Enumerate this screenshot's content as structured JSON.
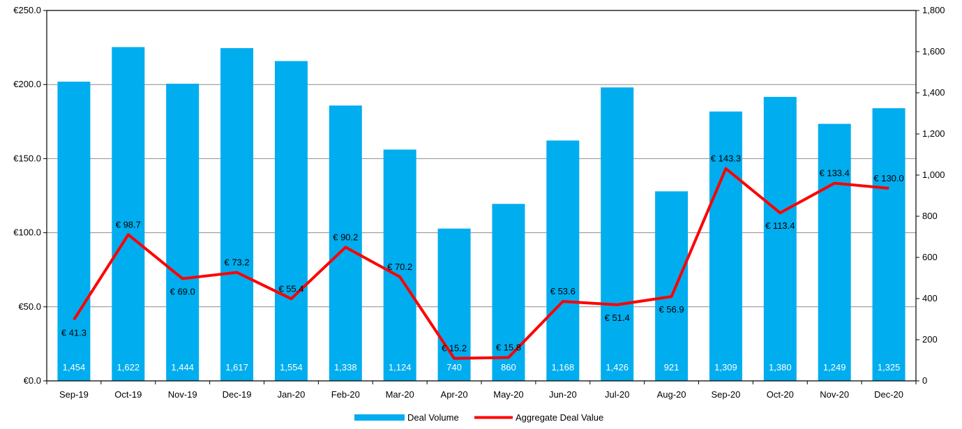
{
  "chart_data": {
    "type": "bar",
    "categories": [
      "Sep-19",
      "Oct-19",
      "Nov-19",
      "Dec-19",
      "Jan-20",
      "Feb-20",
      "Mar-20",
      "Apr-20",
      "May-20",
      "Jun-20",
      "Jul-20",
      "Aug-20",
      "Sep-20",
      "Oct-20",
      "Nov-20",
      "Dec-20"
    ],
    "series": [
      {
        "name": "Deal Volume",
        "type": "bar",
        "axis": "right",
        "color": "#00adee",
        "values": [
          1454,
          1622,
          1444,
          1617,
          1554,
          1338,
          1124,
          740,
          860,
          1168,
          1426,
          921,
          1309,
          1380,
          1249,
          1325
        ],
        "labels": [
          "1,454",
          "1,622",
          "1,444",
          "1,617",
          "1,554",
          "1,338",
          "1,124",
          "740",
          "860",
          "1,168",
          "1,426",
          "921",
          "1,309",
          "1,380",
          "1,249",
          "1,325"
        ]
      },
      {
        "name": "Aggregate Deal Value",
        "type": "line",
        "axis": "left",
        "color": "#ff0000",
        "values": [
          41.3,
          98.7,
          69.0,
          73.2,
          55.4,
          90.2,
          70.2,
          15.2,
          15.8,
          53.6,
          51.4,
          56.9,
          143.3,
          113.4,
          133.4,
          130.0
        ],
        "labels": [
          "€ 41.3",
          "€ 98.7",
          "€ 69.0",
          "€ 73.2",
          "€ 55.4",
          "€ 90.2",
          "€ 70.2",
          "€ 15.2",
          "€ 15.8",
          "€ 53.6",
          "€ 51.4",
          "€ 56.9",
          "€ 143.3",
          "€ 113.4",
          "€ 133.4",
          "€ 130.0"
        ]
      }
    ],
    "left_axis": {
      "ylim": [
        0,
        250
      ],
      "ticks": [
        0,
        50,
        100,
        150,
        200,
        250
      ],
      "tick_labels": [
        "€0.0",
        "€50.0",
        "€100.0",
        "€150.0",
        "€200.0",
        "€250.0"
      ]
    },
    "right_axis": {
      "ylim": [
        0,
        1800
      ],
      "ticks": [
        0,
        200,
        400,
        600,
        800,
        1000,
        1200,
        1400,
        1600,
        1800
      ],
      "tick_labels": [
        "0",
        "200",
        "400",
        "600",
        "800",
        "1,000",
        "1,200",
        "1,400",
        "1,600",
        "1,800"
      ]
    },
    "title": "",
    "xlabel": "",
    "ylabel": "",
    "grid": true,
    "legend": {
      "placement": "bottom",
      "entries": [
        "Deal Volume",
        "Aggregate Deal Value"
      ]
    }
  }
}
